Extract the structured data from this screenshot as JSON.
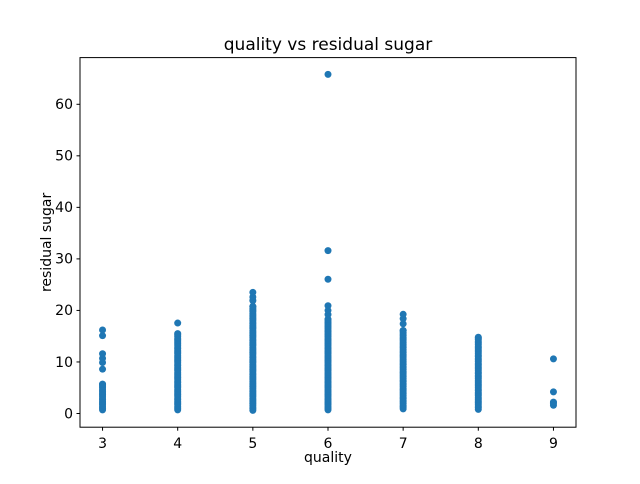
{
  "figure": {
    "background": "#ffffff"
  },
  "chart_data": {
    "type": "scatter",
    "title": "quality vs residual sugar",
    "xlabel": "quality",
    "ylabel": "residual sugar",
    "xticks": [
      3,
      4,
      5,
      6,
      7,
      8,
      9
    ],
    "yticks": [
      0,
      10,
      20,
      30,
      40,
      50,
      60
    ],
    "xlim": [
      2.7,
      9.3
    ],
    "ylim": [
      -2.66,
      69.06
    ],
    "grid": false,
    "legend": "none",
    "marker_color": "#1f77b4",
    "marker_diameter_px": 7,
    "spine_color": "#000000",
    "series_note": "residual sugar values by wine quality; bands are dense ranges of overlapping points, outliers are individually visible dots",
    "columns": [
      {
        "x": 3,
        "bands": [
          [
            0.7,
            5.7
          ]
        ],
        "outliers": [
          8.6,
          9.9,
          10.7,
          11.6,
          15.1,
          16.2
        ]
      },
      {
        "x": 4,
        "bands": [
          [
            0.7,
            15.5
          ]
        ],
        "outliers": [
          17.55
        ]
      },
      {
        "x": 5,
        "bands": [
          [
            0.6,
            20.8
          ]
        ],
        "outliers": [
          21.9,
          22.6,
          23.5
        ]
      },
      {
        "x": 6,
        "bands": [
          [
            0.7,
            18.3
          ]
        ],
        "outliers": [
          19.2,
          20.0,
          20.9,
          26.05,
          31.6,
          65.8
        ]
      },
      {
        "x": 7,
        "bands": [
          [
            0.9,
            16.1
          ]
        ],
        "outliers": [
          17.4,
          18.4,
          19.25
        ]
      },
      {
        "x": 8,
        "bands": [
          [
            0.8,
            14.8
          ]
        ],
        "outliers": []
      },
      {
        "x": 9,
        "bands": [],
        "outliers": [
          1.6,
          2.0,
          2.2,
          4.2,
          10.6
        ]
      }
    ]
  }
}
